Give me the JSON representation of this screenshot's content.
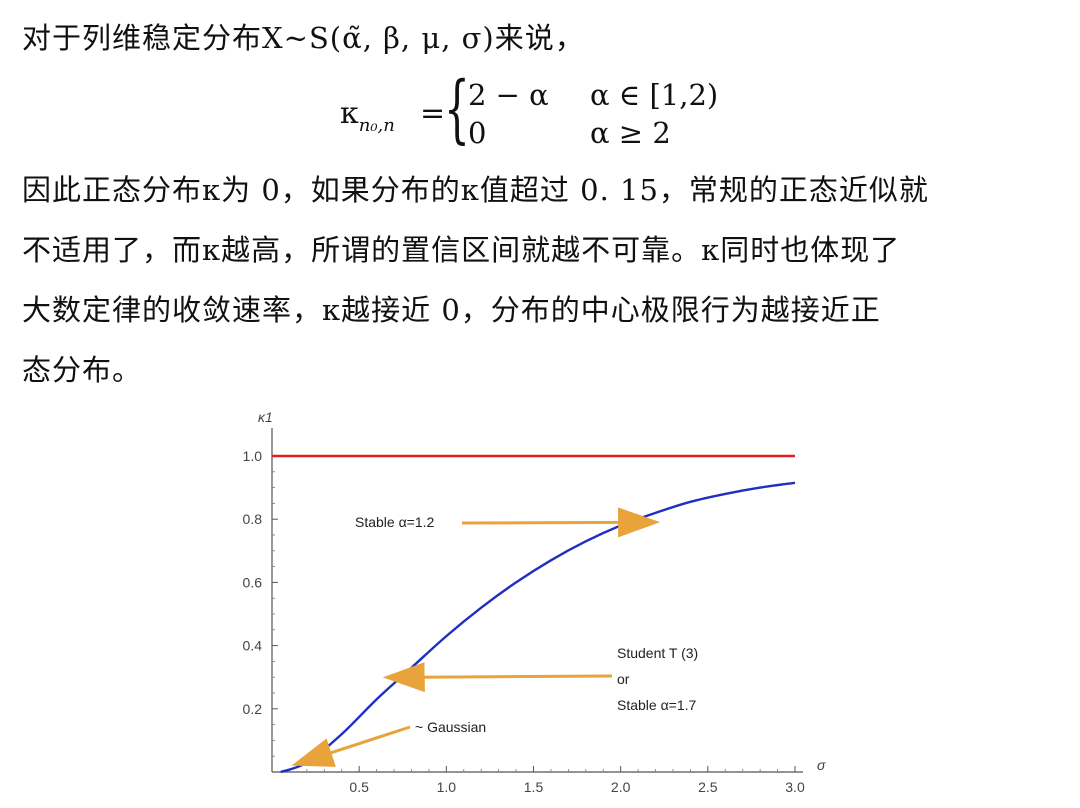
{
  "intro_line": "对于列维稳定分布X∼S(α̃, β, μ, σ)来说，",
  "formula": {
    "lhs": "κ",
    "lhs_sub": "n₀,n",
    "eq": "=",
    "case1_value": "2 − α",
    "case1_cond": "α ∈ [1,2)",
    "case2_value": "0",
    "case2_cond": "α ≥ 2"
  },
  "paragraph_lines": [
    "因此正态分布κ为 0，如果分布的κ值超过 0. 15，常规的正态近似就",
    "不适用了，而κ越高，所谓的置信区间就越不可靠。κ同时也体现了",
    "大数定律的收敛速率，κ越接近 0，分布的中心极限行为越接近正",
    "态分布。"
  ],
  "chart_data": {
    "type": "line",
    "ylabel": "κ1",
    "xlabel": "σ",
    "xlim": [
      0,
      3.0
    ],
    "ylim": [
      0,
      1.0
    ],
    "x_ticks": [
      "0.5",
      "1.0",
      "1.5",
      "2.0",
      "2.5",
      "3.0"
    ],
    "y_ticks": [
      "0.2",
      "0.4",
      "0.6",
      "0.8",
      "1.0"
    ],
    "series": [
      {
        "color": "#e0201e",
        "x": [
          0,
          0.5,
          1.0,
          1.5,
          2.0,
          2.5,
          3.0
        ],
        "y": [
          1.0,
          1.0,
          1.0,
          1.0,
          1.0,
          1.0,
          1.0
        ]
      },
      {
        "color": "#1f2fbf",
        "x": [
          0.05,
          0.2,
          0.4,
          0.6,
          0.8,
          1.0,
          1.2,
          1.4,
          1.6,
          1.8,
          2.0,
          2.2,
          2.4,
          2.6,
          2.8,
          3.0
        ],
        "y": [
          0.0,
          0.03,
          0.12,
          0.23,
          0.33,
          0.43,
          0.52,
          0.6,
          0.67,
          0.73,
          0.78,
          0.82,
          0.855,
          0.88,
          0.9,
          0.915
        ]
      }
    ],
    "annotations": [
      {
        "text": "Stable α=1.2",
        "arrow_to": [
          2.1,
          0.79
        ]
      },
      {
        "text_lines": [
          "Student T (3)",
          "or",
          "Stable α=1.7"
        ],
        "arrow_to": [
          0.75,
          0.3
        ]
      },
      {
        "text": "~ Gaussian",
        "arrow_to": [
          0.25,
          0.03
        ]
      }
    ],
    "grid": false,
    "arrow_color": "#e8a33a"
  }
}
